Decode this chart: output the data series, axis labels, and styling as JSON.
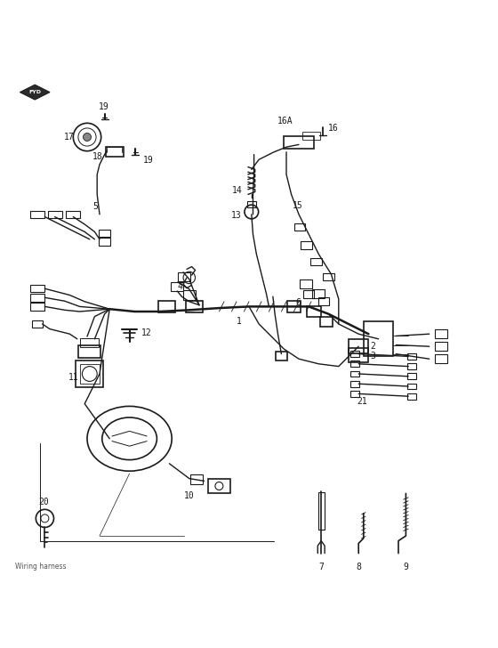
{
  "title": "Wiring harness",
  "background_color": "#ffffff",
  "line_color": "#1a1a1a",
  "figsize": [
    5.6,
    7.28
  ],
  "dpi": 100
}
